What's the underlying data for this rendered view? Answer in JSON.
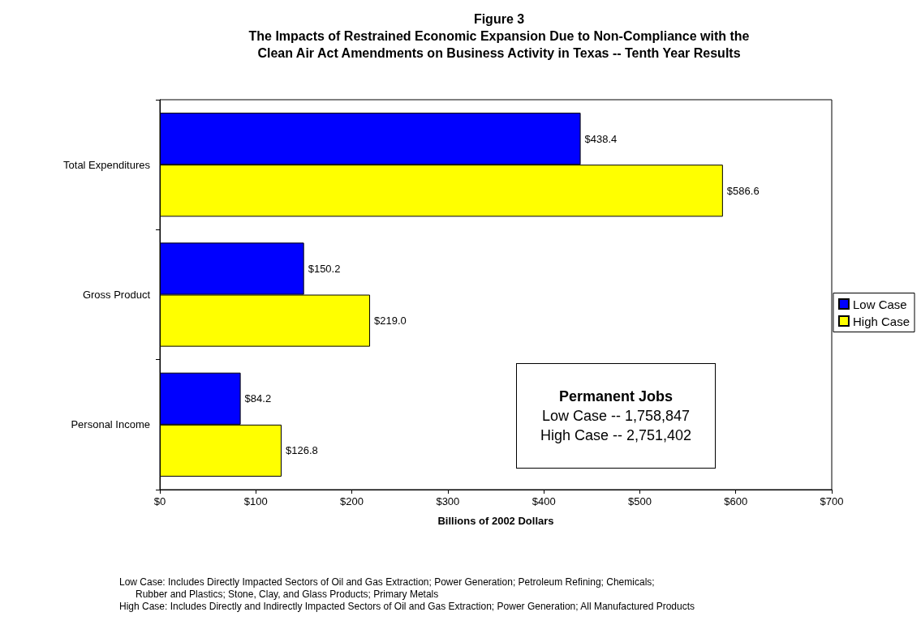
{
  "chart_data": {
    "type": "bar",
    "orientation": "horizontal",
    "title": "Figure 3\nThe Impacts of Restrained Economic Expansion Due to Non-Compliance with the\nClean Air Act Amendments on Business Activity in Texas -- Tenth Year Results",
    "xlabel": "Billions of 2002 Dollars",
    "categories": [
      "Total Expenditures",
      "Gross Product",
      "Personal Income"
    ],
    "series": [
      {
        "name": "Low Case",
        "color": "#0000ff",
        "values": [
          438.4,
          150.2,
          84.2
        ],
        "value_labels": [
          "$438.4",
          "$150.2",
          "$84.2"
        ]
      },
      {
        "name": "High Case",
        "color": "#ffff00",
        "values": [
          586.6,
          219.0,
          126.8
        ],
        "value_labels": [
          "$586.6",
          "$219.0",
          "$126.8"
        ]
      }
    ],
    "xlim": [
      0,
      700
    ],
    "xticks": [
      {
        "value": 0,
        "label": "$0"
      },
      {
        "value": 100,
        "label": "$100"
      },
      {
        "value": 200,
        "label": "$200"
      },
      {
        "value": 300,
        "label": "$300"
      },
      {
        "value": 400,
        "label": "$400"
      },
      {
        "value": 500,
        "label": "$500"
      },
      {
        "value": 600,
        "label": "$600"
      },
      {
        "value": 700,
        "label": "$700"
      }
    ],
    "grid": false,
    "legend": "right",
    "annotations": [
      "Permanent Jobs\nLow Case -- 1,758,847\nHigh Case -- 2,751,402",
      "Low Case: Includes Directly Impacted Sectors of Oil and Gas Extraction; Power Generation; Petroleum Refining; Chemicals;\n      Rubber and Plastics; Stone, Clay, and Glass Products; Primary Metals",
      "High Case: Includes Directly and Indirectly Impacted Sectors of Oil and Gas Extraction; Power Generation; All Manufactured Products"
    ]
  }
}
